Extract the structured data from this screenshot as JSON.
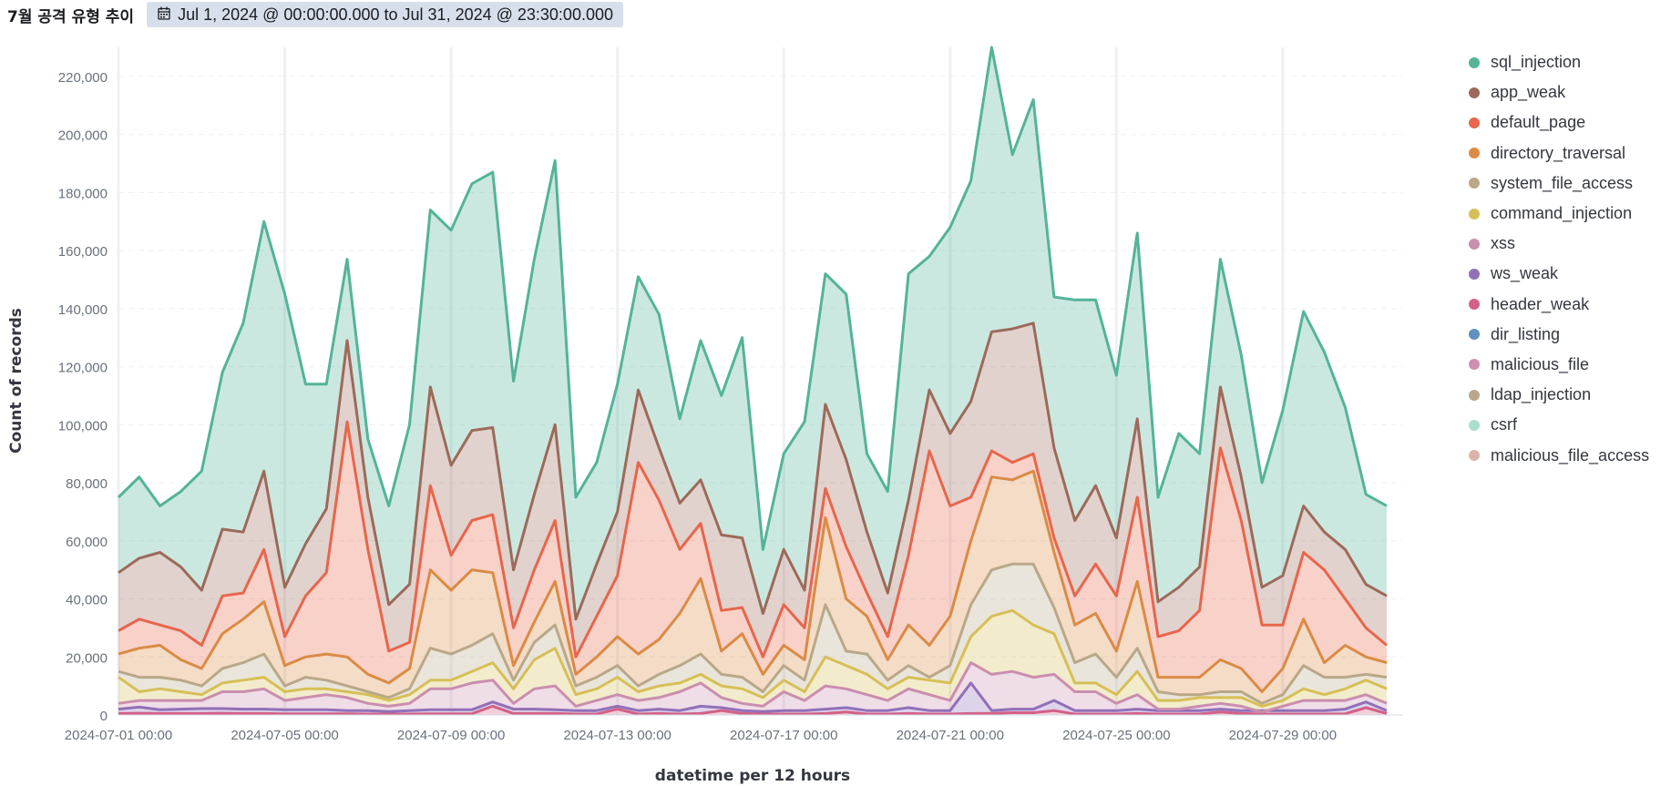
{
  "panel": {
    "title": "7월 공격 유형 추이",
    "time_range": "Jul 1, 2024 @ 00:00:00.000 to Jul 31, 2024 @ 23:30:00.000",
    "time_icon": "calendar-icon"
  },
  "chart_data": {
    "type": "area",
    "stacked": true,
    "xlabel": "datetime per 12 hours",
    "ylabel": "Count of records",
    "ylim": [
      0,
      230000
    ],
    "yticks": [
      0,
      20000,
      40000,
      60000,
      80000,
      100000,
      120000,
      140000,
      160000,
      180000,
      200000,
      220000
    ],
    "ytick_labels": [
      "0",
      "20,000",
      "40,000",
      "60,000",
      "80,000",
      "100,000",
      "120,000",
      "140,000",
      "160,000",
      "180,000",
      "200,000",
      "220,000"
    ],
    "xtick_labels": [
      "2024-07-01 00:00",
      "2024-07-05 00:00",
      "2024-07-09 00:00",
      "2024-07-13 00:00",
      "2024-07-17 00:00",
      "2024-07-21 00:00",
      "2024-07-25 00:00",
      "2024-07-29 00:00"
    ],
    "xtick_index": [
      0,
      8,
      16,
      24,
      32,
      40,
      48,
      56
    ],
    "grid": true,
    "legend_position": "right",
    "series_order_bottom_to_top": [
      "header_weak",
      "ws_weak",
      "xss",
      "command_injection",
      "system_file_access",
      "directory_traversal",
      "default_page",
      "app_weak",
      "sql_injection"
    ],
    "legend": [
      {
        "name": "sql_injection",
        "color": "#54b399"
      },
      {
        "name": "app_weak",
        "color": "#9c6a5a"
      },
      {
        "name": "default_page",
        "color": "#e7664c"
      },
      {
        "name": "directory_traversal",
        "color": "#da8b45"
      },
      {
        "name": "system_file_access",
        "color": "#b9a888"
      },
      {
        "name": "command_injection",
        "color": "#d6bf57"
      },
      {
        "name": "xss",
        "color": "#ca8eae"
      },
      {
        "name": "ws_weak",
        "color": "#9170b8"
      },
      {
        "name": "header_weak",
        "color": "#d36086"
      },
      {
        "name": "dir_listing",
        "color": "#6092c0"
      },
      {
        "name": "malicious_file",
        "color": "#d08fb0"
      },
      {
        "name": "ldap_injection",
        "color": "#b9a888"
      },
      {
        "name": "csrf",
        "color": "#aadfd0"
      },
      {
        "name": "malicious_file_access",
        "color": "#dcb3a9"
      }
    ],
    "stack_tops": {
      "sql_injection": [
        75000,
        82000,
        72000,
        77000,
        84000,
        118000,
        135000,
        170000,
        145000,
        114000,
        114000,
        157000,
        95000,
        72000,
        100000,
        174000,
        167000,
        183000,
        187000,
        115000,
        157000,
        191000,
        75000,
        87000,
        114000,
        151000,
        138000,
        102000,
        129000,
        110000,
        130000,
        57000,
        90000,
        101000,
        152000,
        145000,
        90000,
        77000,
        152000,
        158000,
        168000,
        184000,
        230000,
        193000,
        212000,
        144000,
        143000,
        143000,
        117000,
        166000,
        75000,
        97000,
        90000,
        157000,
        124000,
        80000,
        105000,
        139000,
        125000,
        106000,
        76000,
        72000
      ],
      "app_weak": [
        49000,
        54000,
        56000,
        51000,
        43000,
        64000,
        63000,
        84000,
        44000,
        59000,
        71000,
        129000,
        75000,
        38000,
        45000,
        113000,
        86000,
        98000,
        99000,
        50000,
        76000,
        100000,
        33000,
        52000,
        70000,
        112000,
        92000,
        73000,
        81000,
        62000,
        61000,
        35000,
        57000,
        43000,
        107000,
        88000,
        63000,
        42000,
        74000,
        112000,
        97000,
        108000,
        132000,
        133000,
        135000,
        92000,
        67000,
        79000,
        61000,
        102000,
        39000,
        44000,
        51000,
        113000,
        82000,
        44000,
        48000,
        72000,
        63000,
        57000,
        45000,
        41000
      ],
      "default_page": [
        29000,
        33000,
        31000,
        29000,
        24000,
        41000,
        42000,
        57000,
        27000,
        41000,
        49000,
        101000,
        57000,
        22000,
        25000,
        79000,
        55000,
        67000,
        69000,
        30000,
        50000,
        67000,
        20000,
        34000,
        48000,
        87000,
        74000,
        57000,
        66000,
        36000,
        37000,
        20000,
        38000,
        30000,
        78000,
        58000,
        42000,
        27000,
        55000,
        91000,
        72000,
        75000,
        91000,
        87000,
        90000,
        61000,
        41000,
        52000,
        41000,
        75000,
        27000,
        29000,
        36000,
        92000,
        67000,
        31000,
        31000,
        56000,
        50000,
        40000,
        30000,
        24000
      ],
      "directory_traversal": [
        21000,
        23000,
        24000,
        19000,
        16000,
        28000,
        33000,
        39000,
        17000,
        20000,
        21000,
        20000,
        14000,
        11000,
        16000,
        50000,
        43000,
        50000,
        49000,
        17000,
        32000,
        46000,
        14000,
        20000,
        27000,
        21000,
        26000,
        35000,
        47000,
        22000,
        28000,
        14000,
        24000,
        19000,
        68000,
        40000,
        34000,
        19000,
        31000,
        24000,
        34000,
        60000,
        82000,
        81000,
        84000,
        56000,
        31000,
        35000,
        22000,
        46000,
        13000,
        13000,
        13000,
        19000,
        16000,
        8000,
        16000,
        33000,
        18000,
        24000,
        20000,
        18000
      ],
      "system_file_access": [
        15000,
        13000,
        13000,
        12000,
        10000,
        16000,
        18000,
        21000,
        10000,
        13000,
        12000,
        10000,
        8000,
        6000,
        9000,
        23000,
        21000,
        24000,
        28000,
        12000,
        25000,
        31000,
        10000,
        13000,
        17000,
        10000,
        14000,
        17000,
        21000,
        14000,
        13000,
        8000,
        17000,
        12000,
        38000,
        22000,
        21000,
        12000,
        17000,
        13000,
        17000,
        38000,
        50000,
        52000,
        52000,
        37000,
        18000,
        21000,
        13000,
        23000,
        8000,
        7000,
        7000,
        8000,
        8000,
        4000,
        7000,
        17000,
        13000,
        13000,
        14000,
        13000
      ],
      "command_injection": [
        13000,
        8000,
        9000,
        8000,
        7000,
        11000,
        12000,
        13000,
        8000,
        9000,
        9000,
        8000,
        7000,
        5000,
        7000,
        12000,
        12000,
        15000,
        18000,
        9000,
        19000,
        23000,
        7000,
        9000,
        13000,
        8000,
        10000,
        11000,
        14000,
        10000,
        9000,
        6000,
        12000,
        8000,
        20000,
        17000,
        14000,
        9000,
        13000,
        12000,
        11000,
        27000,
        34000,
        36000,
        31000,
        28000,
        11000,
        11000,
        7000,
        15000,
        5000,
        5000,
        6000,
        6000,
        6000,
        3000,
        5000,
        9000,
        7000,
        9000,
        12000,
        9000
      ],
      "xss": [
        4000,
        5000,
        5000,
        5000,
        5000,
        8000,
        8000,
        9000,
        5000,
        6000,
        7000,
        6000,
        4000,
        3000,
        4000,
        9000,
        9000,
        11000,
        12000,
        4000,
        9000,
        10000,
        3000,
        5000,
        7000,
        5000,
        6000,
        8000,
        11000,
        6000,
        4000,
        3000,
        8000,
        5000,
        10000,
        9000,
        7000,
        5000,
        9000,
        7000,
        5000,
        18000,
        14000,
        15000,
        13000,
        14000,
        8000,
        8000,
        4000,
        7000,
        2000,
        2000,
        3000,
        4000,
        3000,
        1000,
        3000,
        5000,
        5000,
        5000,
        7000,
        4000
      ],
      "ws_weak": [
        2000,
        2700,
        1800,
        2000,
        2200,
        2200,
        2000,
        2000,
        1800,
        1800,
        1800,
        1500,
        1500,
        1200,
        1500,
        1800,
        1800,
        1800,
        4500,
        2000,
        2000,
        1800,
        1500,
        1500,
        3000,
        1500,
        2000,
        1500,
        3000,
        2500,
        1500,
        1200,
        1500,
        1500,
        2000,
        2500,
        1500,
        1500,
        2500,
        1500,
        1500,
        11000,
        1500,
        2000,
        2000,
        5000,
        1500,
        1500,
        1500,
        2000,
        1500,
        1500,
        1500,
        2000,
        1500,
        1500,
        1500,
        1500,
        1500,
        2000,
        4500,
        1500
      ],
      "header_weak": [
        500,
        600,
        500,
        500,
        500,
        600,
        500,
        500,
        400,
        400,
        400,
        400,
        300,
        300,
        300,
        400,
        400,
        400,
        3000,
        500,
        500,
        500,
        300,
        300,
        2000,
        300,
        500,
        300,
        500,
        1500,
        500,
        300,
        300,
        300,
        500,
        1000,
        300,
        300,
        500,
        300,
        300,
        500,
        500,
        800,
        800,
        1500,
        300,
        300,
        300,
        500,
        300,
        300,
        300,
        1000,
        500,
        300,
        300,
        300,
        300,
        400,
        2500,
        500
      ]
    }
  }
}
